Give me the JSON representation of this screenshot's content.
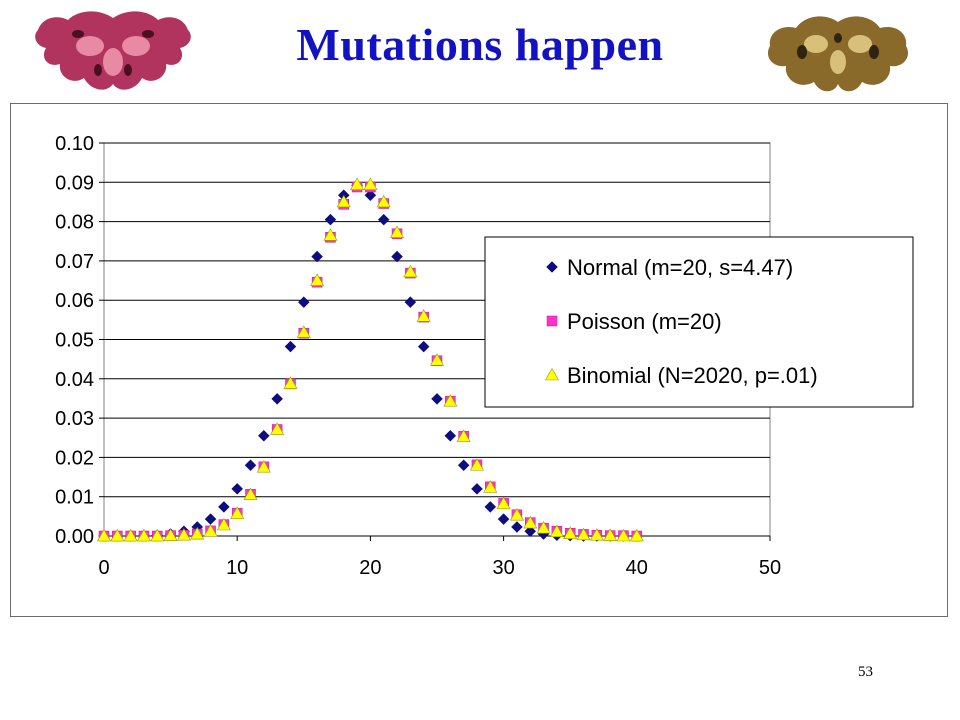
{
  "slide": {
    "title": "Mutations happen",
    "page_number": "53"
  },
  "colors": {
    "title": "#1212c4",
    "normal": "#0d0d80",
    "poisson": "#ff33cc",
    "binomial": "#ffff00",
    "binomial_edge": "#9a9a00",
    "plot_bg": "#ffffff",
    "gridline": "#000000"
  },
  "decorations": {
    "left_image": "pink-inkblot",
    "right_image": "sepia-inkblot"
  },
  "chart_data": {
    "type": "scatter",
    "title": "",
    "xlabel": "",
    "ylabel": "",
    "xlim": [
      0,
      50
    ],
    "ylim": [
      0,
      0.1
    ],
    "x_ticks": [
      "0",
      "10",
      "20",
      "30",
      "40",
      "50"
    ],
    "y_ticks": [
      "0.00",
      "0.01",
      "0.02",
      "0.03",
      "0.04",
      "0.05",
      "0.06",
      "0.07",
      "0.08",
      "0.09",
      "0.10"
    ],
    "grid": "horizontal major gridlines",
    "legend_position": "right",
    "x": [
      0,
      1,
      2,
      3,
      4,
      5,
      6,
      7,
      8,
      9,
      10,
      11,
      12,
      13,
      14,
      15,
      16,
      17,
      18,
      19,
      20,
      21,
      22,
      23,
      24,
      25,
      26,
      27,
      28,
      29,
      30,
      31,
      32,
      33,
      34,
      35,
      36,
      37,
      38,
      39,
      40
    ],
    "series": [
      {
        "name": "Normal (m=20, s=4.47)",
        "marker": "diamond",
        "values": [
          0.0,
          0.0,
          0.0,
          0.0001,
          0.0002,
          0.0005,
          0.0012,
          0.0023,
          0.0043,
          0.0074,
          0.012,
          0.018,
          0.0255,
          0.0349,
          0.0482,
          0.0595,
          0.0711,
          0.0805,
          0.0867,
          0.0892,
          0.0867,
          0.0805,
          0.0711,
          0.0595,
          0.0482,
          0.0349,
          0.0255,
          0.018,
          0.012,
          0.0074,
          0.0043,
          0.0023,
          0.0012,
          0.0005,
          0.0002,
          0.0001,
          0.0,
          0.0,
          0.0,
          0.0,
          0.0
        ]
      },
      {
        "name": "Poisson (m=20)",
        "marker": "square",
        "values": [
          0.0,
          0.0,
          0.0,
          0.0,
          0.0,
          0.0001,
          0.0002,
          0.0005,
          0.0013,
          0.0029,
          0.0058,
          0.0106,
          0.0176,
          0.0271,
          0.0387,
          0.0516,
          0.0646,
          0.076,
          0.0844,
          0.0888,
          0.0888,
          0.0846,
          0.0769,
          0.0669,
          0.0557,
          0.0446,
          0.0343,
          0.0254,
          0.0181,
          0.0125,
          0.0083,
          0.0054,
          0.0034,
          0.002,
          0.0012,
          0.0007,
          0.0004,
          0.0002,
          0.0001,
          0.0001,
          0.0
        ]
      },
      {
        "name": "Binomial (N=2020, p=.01)",
        "marker": "triangle",
        "values": [
          0.0,
          0.0,
          0.0,
          0.0,
          0.0,
          0.0001,
          0.0002,
          0.0005,
          0.0012,
          0.0028,
          0.0057,
          0.0105,
          0.0175,
          0.0271,
          0.0388,
          0.0518,
          0.065,
          0.0765,
          0.085,
          0.0894,
          0.0894,
          0.085,
          0.0772,
          0.0672,
          0.0559,
          0.0447,
          0.0343,
          0.0253,
          0.018,
          0.0124,
          0.0082,
          0.0053,
          0.0033,
          0.002,
          0.0011,
          0.0006,
          0.0003,
          0.0002,
          0.0001,
          0.0,
          0.0
        ]
      }
    ]
  }
}
